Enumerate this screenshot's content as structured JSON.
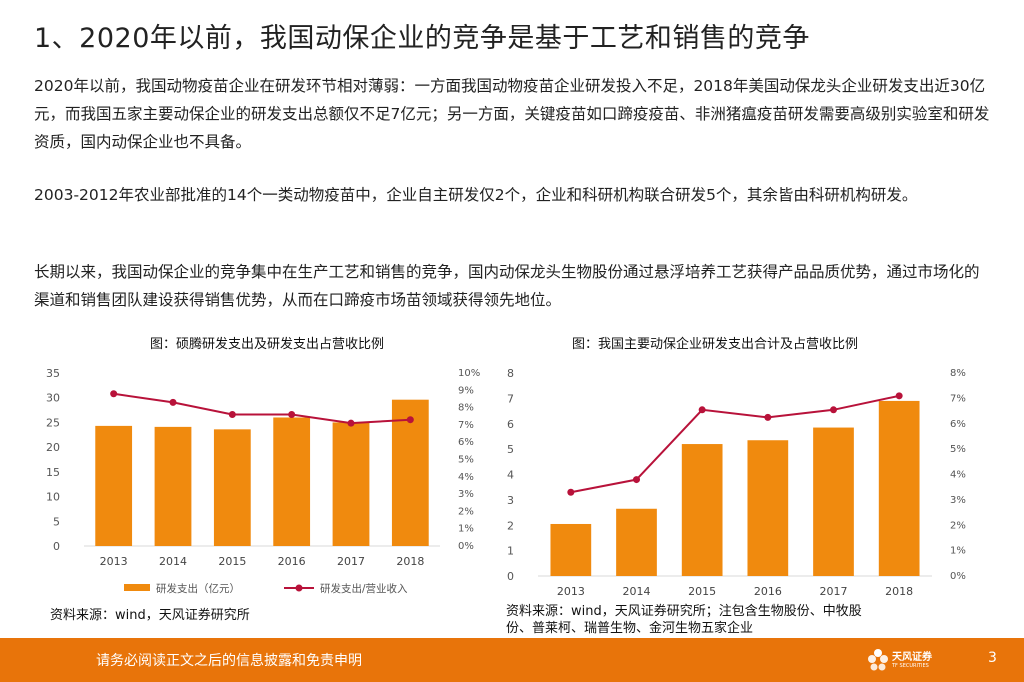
{
  "page": {
    "title": "1、2020年以前，我国动保企业的竞争是基于工艺和销售的竞争",
    "paragraphs": [
      "2020年以前，我国动物疫苗企业在研发环节相对薄弱：一方面我国动物疫苗企业研发投入不足，2018年美国动保龙头企业研发支出近30亿元，而我国五家主要动保企业的研发支出总额仅不足7亿元；另一方面，关键疫苗如口蹄疫疫苗、非洲猪瘟疫苗研发需要高级别实验室和研发资质，国内动保企业也不具备。",
      "2003-2012年农业部批准的14个一类动物疫苗中，企业自主研发仅2个，企业和科研机构联合研发5个，其余皆由科研机构研发。",
      "长期以来，我国动保企业的竞争集中在生产工艺和销售的竞争，国内动保龙头生物股份通过悬浮培养工艺获得产品品质优势，通过市场化的渠道和销售团队建设获得销售优势，从而在口蹄疫市场苗领域获得领先地位。"
    ],
    "sources": {
      "left": "资料来源：wind，天风证券研究所",
      "right": "资料来源：wind，天风证券研究所；注包含生物股份、中牧股份、普莱柯、瑞普生物、金河生物五家企业"
    },
    "footer": {
      "disclaimer": "请务必阅读正文之后的信息披露和免责申明",
      "logo_name": "天风证券",
      "logo_sub": "TF SECURITIES",
      "page_number": "3"
    }
  },
  "chart_data": [
    {
      "type": "bar+line",
      "title": "图：硕腾研发支出及研发支出占营收比例",
      "categories": [
        "2013",
        "2014",
        "2015",
        "2016",
        "2017",
        "2018"
      ],
      "series": [
        {
          "name": "研发支出（亿元）",
          "type": "bar",
          "axis": "left",
          "values": [
            24.3,
            24.1,
            23.6,
            26.0,
            25.0,
            29.6
          ]
        },
        {
          "name": "研发支出/营业收入",
          "type": "line",
          "axis": "right",
          "values": [
            8.8,
            8.3,
            7.6,
            7.6,
            7.1,
            7.3
          ]
        }
      ],
      "ylim_left": [
        0,
        35
      ],
      "yticks_left": [
        "0",
        "5",
        "10",
        "15",
        "20",
        "25",
        "30",
        "35"
      ],
      "ylim_right": [
        0,
        10
      ],
      "yticks_right": [
        "0%",
        "1%",
        "2%",
        "3%",
        "4%",
        "5%",
        "6%",
        "7%",
        "8%",
        "9%",
        "10%"
      ],
      "grid": false,
      "legend": "bottom",
      "colors": {
        "bar": "#f08a0e",
        "line": "#b8123a"
      }
    },
    {
      "type": "bar+line",
      "title": "图：我国主要动保企业研发支出合计及占营收比例",
      "categories": [
        "2013",
        "2014",
        "2015",
        "2016",
        "2017",
        "2018"
      ],
      "series": [
        {
          "type": "bar",
          "axis": "left",
          "values": [
            2.05,
            2.65,
            5.2,
            5.35,
            5.85,
            6.9
          ]
        },
        {
          "type": "line",
          "axis": "right",
          "values": [
            3.3,
            3.8,
            6.55,
            6.25,
            6.55,
            7.1
          ]
        }
      ],
      "ylim_left": [
        0,
        8
      ],
      "yticks_left": [
        "0",
        "1",
        "2",
        "3",
        "4",
        "5",
        "6",
        "7",
        "8"
      ],
      "ylim_right": [
        0,
        8
      ],
      "yticks_right": [
        "0%",
        "1%",
        "2%",
        "3%",
        "4%",
        "5%",
        "6%",
        "7%",
        "8%"
      ],
      "grid": false,
      "legend": "none",
      "colors": {
        "bar": "#f08a0e",
        "line": "#b8123a"
      }
    }
  ]
}
